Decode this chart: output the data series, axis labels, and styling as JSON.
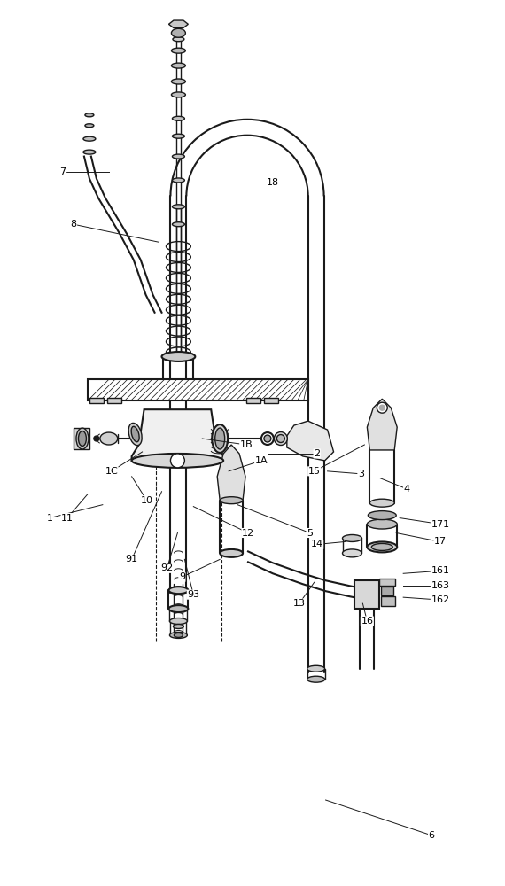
{
  "bg_color": "#ffffff",
  "line_color": "#1a1a1a",
  "lw": 1.0,
  "lw2": 1.5,
  "fig_width": 5.7,
  "fig_height": 10.0,
  "labels": [
    [
      "1",
      55,
      415,
      115,
      430
    ],
    [
      "1A",
      295,
      480,
      258,
      468
    ],
    [
      "1B",
      278,
      498,
      228,
      505
    ],
    [
      "1C",
      125,
      468,
      160,
      490
    ],
    [
      "2",
      358,
      488,
      302,
      488
    ],
    [
      "3",
      408,
      465,
      370,
      468
    ],
    [
      "4",
      460,
      448,
      430,
      460
    ],
    [
      "5",
      350,
      398,
      268,
      430
    ],
    [
      "6",
      488,
      55,
      368,
      95
    ],
    [
      "7",
      70,
      808,
      122,
      808
    ],
    [
      "8",
      82,
      748,
      178,
      728
    ],
    [
      "9",
      205,
      348,
      248,
      368
    ],
    [
      "10",
      165,
      435,
      148,
      462
    ],
    [
      "11",
      75,
      415,
      98,
      442
    ],
    [
      "12",
      280,
      398,
      218,
      428
    ],
    [
      "13",
      338,
      318,
      355,
      342
    ],
    [
      "14",
      358,
      385,
      390,
      388
    ],
    [
      "15",
      355,
      468,
      412,
      498
    ],
    [
      "16",
      415,
      298,
      410,
      318
    ],
    [
      "17",
      498,
      388,
      448,
      398
    ],
    [
      "18",
      308,
      795,
      218,
      795
    ],
    [
      "91",
      148,
      368,
      182,
      445
    ],
    [
      "92",
      188,
      358,
      200,
      398
    ],
    [
      "93",
      218,
      328,
      208,
      368
    ],
    [
      "161",
      498,
      355,
      456,
      352
    ],
    [
      "162",
      498,
      322,
      456,
      325
    ],
    [
      "163",
      498,
      338,
      456,
      338
    ],
    [
      "171",
      498,
      408,
      452,
      415
    ]
  ]
}
